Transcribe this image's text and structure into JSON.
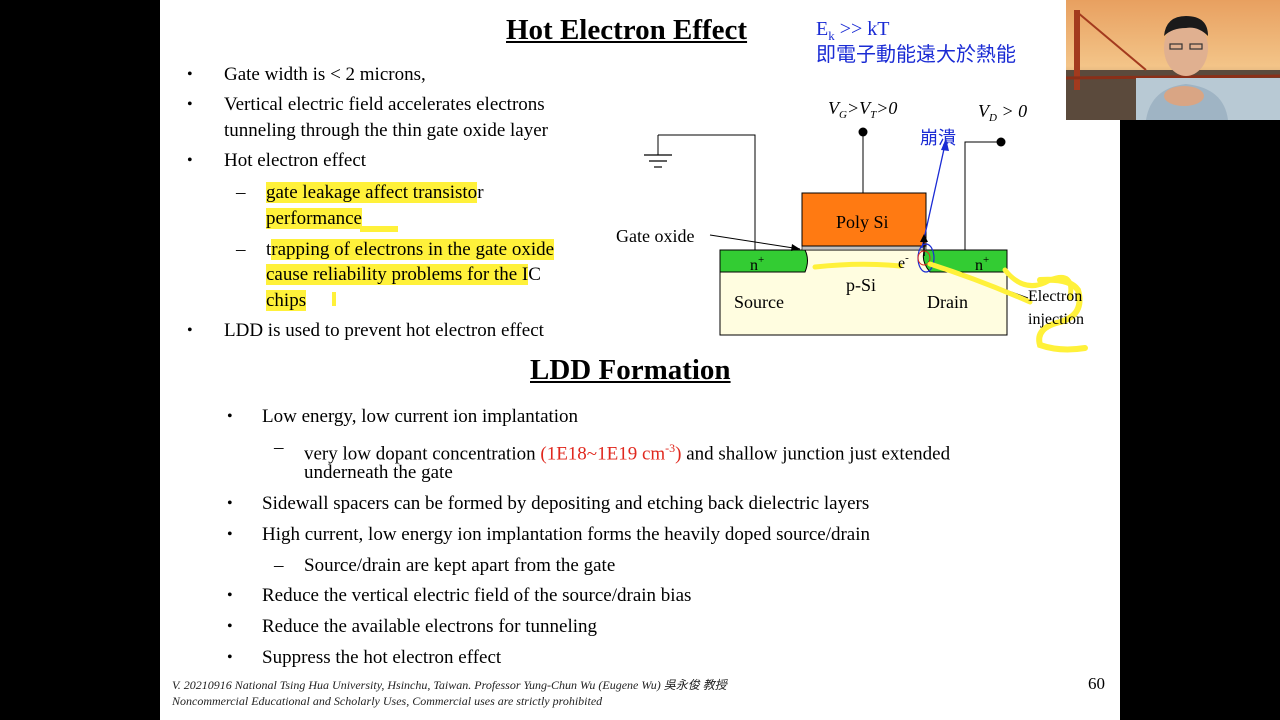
{
  "slide": {
    "title1": "Hot Electron Effect",
    "energy_note": {
      "line1_main": "E",
      "line1_sub": "k",
      "line1_rest": " >> kT",
      "line2": "即電子動能遠大於熱能"
    },
    "hot_bullets": [
      "Gate width is < 2 microns,",
      "Vertical electric field accelerates electrons",
      "tunneling through the thin gate oxide layer",
      "Hot electron effect",
      "LDD is used to prevent hot electron effect"
    ],
    "sub1": {
      "hl": "gate leakage affect transisto",
      "rest": "r",
      "line2": "performance"
    },
    "sub2": {
      "first": "t",
      "hl": "rapping of electrons in the gate oxide",
      "line2": "cause reliability problems for the I",
      "line2_rest": "C",
      "line3": "chips"
    },
    "dash": "–",
    "bullet_char": "•",
    "diagram": {
      "vg_V": "V",
      "vg_sub": "G",
      "vg_mid": ">V",
      "vg_sub2": "T",
      "vg_end": ">0",
      "vd_V": "V",
      "vd_sub": "D",
      "vd_end": " > 0",
      "collapse": "崩潰",
      "gate_oxide": "Gate oxide",
      "poly": "Poly Si",
      "n_plus": "n",
      "plus": "+",
      "psi": "p-Si",
      "source": "Source",
      "drain": "Drain",
      "e_minus": "e",
      "minus": "-",
      "electron_injection_1": "Electron",
      "electron_injection_2": "injection"
    },
    "title2": "LDD Formation",
    "ldd": {
      "b1": "Low energy, low current ion implantation",
      "s1_pre": "very low dopant concentration  ",
      "s1_red_a": "(1E18~1E19 cm",
      "s1_red_sup": "-3",
      "s1_red_b": ")",
      "s1_post": " and shallow junction just extended",
      "s1_line2": "underneath the gate",
      "b2": "Sidewall spacers can be formed by depositing and etching back dielectric layers",
      "b3": "High current, low energy ion implantation forms the heavily doped source/drain",
      "s3": "Source/drain are kept apart from the gate",
      "b4": "Reduce the vertical electric field of the source/drain bias",
      "b5": "Reduce the available electrons for tunneling",
      "b6": "Suppress the hot electron effect"
    },
    "footer_line1": "V. 20210916 National Tsing Hua University, Hsinchu, Taiwan. Professor Yung-Chun Wu (Eugene Wu) 吳永俊 教授",
    "footer_line2": "Noncommercial Educational and Scholarly Uses, Commercial uses are strictly prohibited",
    "page_number": "60"
  },
  "colors": {
    "highlight": "#fff13a",
    "poly": "#ff7a12",
    "n_region": "#33cc33",
    "substrate": "#fffde0",
    "annotation_blue": "#1a2bd4",
    "red_text": "#e0281e"
  },
  "webcam": {
    "icon": "presenter-video-feed"
  }
}
